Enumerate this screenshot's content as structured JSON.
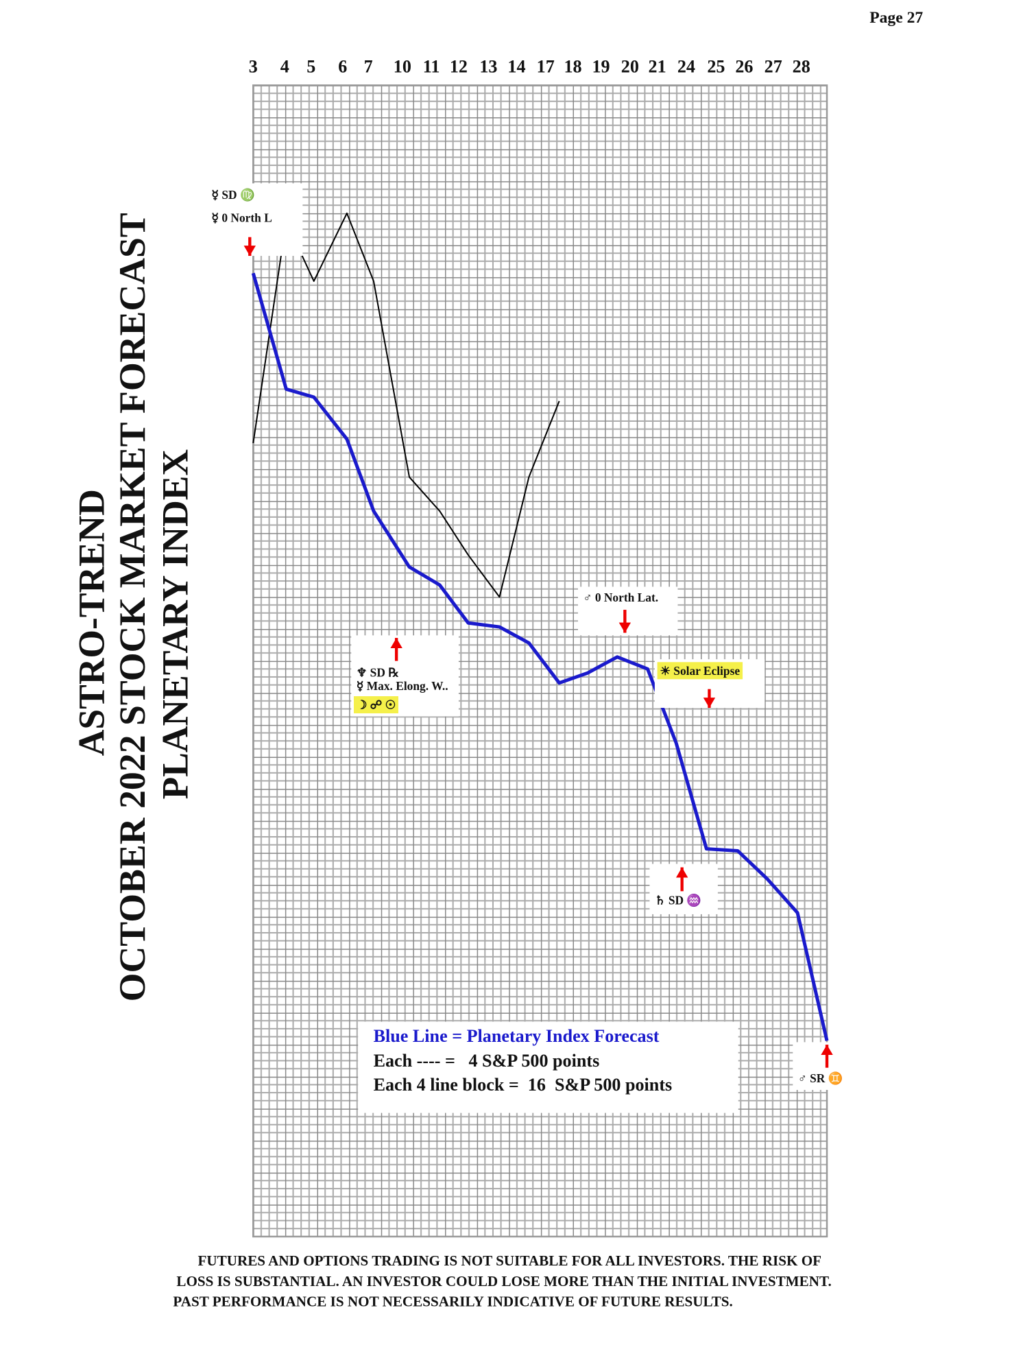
{
  "page": "Page  27",
  "chart_data": {
    "type": "line",
    "title": [
      "ASTRO-TREND",
      "OCTOBER 2022 STOCK MARKET FORECAST",
      "PLANETARY INDEX"
    ],
    "categories": [
      "3",
      "4",
      "5",
      "6",
      "7",
      "10",
      "11",
      "12",
      "13",
      "14",
      "17",
      "18",
      "19",
      "20",
      "21",
      "24",
      "25",
      "26",
      "27",
      "28"
    ],
    "ylim": [
      0,
      576
    ],
    "series": [
      {
        "name": "Blue Line = Planetary Index Forecast",
        "color": "#1a1acc",
        "values": [
          482,
          424,
          420,
          399,
          363,
          335,
          326,
          307,
          305,
          297,
          277,
          282,
          290,
          284,
          247,
          194,
          193,
          179,
          162,
          98
        ]
      },
      {
        "color": "#000000",
        "values": [
          397,
          508,
          478,
          512,
          478,
          380,
          363,
          341,
          320,
          380,
          418,
          null,
          null,
          null,
          null,
          null,
          null,
          null,
          null,
          null
        ]
      }
    ],
    "legend_notes": [
      "Each ---- =   4 S&P 500 points",
      "Each 4 line block =  16  S&P 500 points"
    ],
    "annotations": [
      {
        "lines": [
          "☿ SD ♍",
          "☿ 0 North L"
        ]
      },
      {
        "lines": [
          "♆ SD ℞",
          "☿ Max. Elong. W..",
          "☽ ☍ ☉"
        ]
      },
      {
        "lines": [
          "♂ 0 North Lat."
        ]
      },
      {
        "lines": [
          "☀ Solar Eclipse"
        ]
      },
      {
        "lines": [
          "♄ SD ♒"
        ]
      },
      {
        "lines": [
          "♂ SR ♊"
        ]
      }
    ]
  },
  "disclaimer": [
    "FUTURES AND OPTIONS TRADING IS NOT SUITABLE FOR ALL INVESTORS.  THE RISK OF",
    "LOSS IS SUBSTANTIAL.  AN INVESTOR COULD LOSE MORE THAN THE INITIAL INVESTMENT.",
    "PAST PERFORMANCE IS NOT NECESSARILY INDICATIVE OF FUTURE RESULTS."
  ]
}
